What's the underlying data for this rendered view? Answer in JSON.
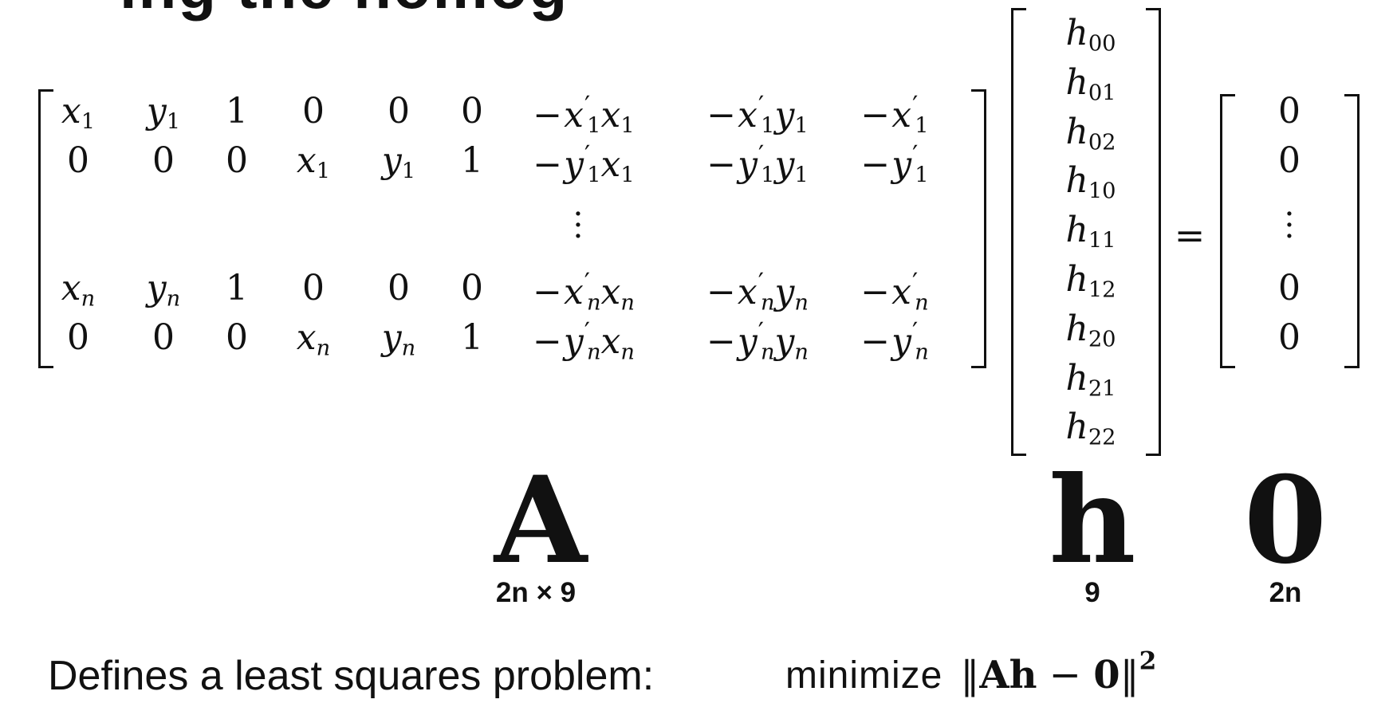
{
  "title_fragment": "ing  the  homog",
  "matrix_A": {
    "rows": [
      [
        {
          "t": [
            [
              "v",
              "x"
            ],
            [
              "sub",
              "1"
            ]
          ]
        },
        {
          "t": [
            [
              "v",
              "y"
            ],
            [
              "sub",
              "1"
            ]
          ]
        },
        {
          "t": [
            [
              "n",
              "1"
            ]
          ]
        },
        {
          "t": [
            [
              "n",
              "0"
            ]
          ]
        },
        {
          "t": [
            [
              "n",
              "0"
            ]
          ]
        },
        {
          "t": [
            [
              "n",
              "0"
            ]
          ]
        },
        {
          "t": [
            [
              "m",
              "−"
            ],
            [
              "v",
              "x"
            ],
            [
              "p",
              "′"
            ],
            [
              "sub",
              "1"
            ],
            [
              "v",
              "x"
            ],
            [
              "sub",
              "1"
            ]
          ]
        },
        {
          "t": [
            [
              "m",
              "−"
            ],
            [
              "v",
              "x"
            ],
            [
              "p",
              "′"
            ],
            [
              "sub",
              "1"
            ],
            [
              "v",
              "y"
            ],
            [
              "sub",
              "1"
            ]
          ]
        },
        {
          "t": [
            [
              "m",
              "−"
            ],
            [
              "v",
              "x"
            ],
            [
              "p",
              "′"
            ],
            [
              "sub",
              "1"
            ]
          ]
        }
      ],
      [
        {
          "t": [
            [
              "n",
              "0"
            ]
          ]
        },
        {
          "t": [
            [
              "n",
              "0"
            ]
          ]
        },
        {
          "t": [
            [
              "n",
              "0"
            ]
          ]
        },
        {
          "t": [
            [
              "v",
              "x"
            ],
            [
              "sub",
              "1"
            ]
          ]
        },
        {
          "t": [
            [
              "v",
              "y"
            ],
            [
              "sub",
              "1"
            ]
          ]
        },
        {
          "t": [
            [
              "n",
              "1"
            ]
          ]
        },
        {
          "t": [
            [
              "m",
              "−"
            ],
            [
              "v",
              "y"
            ],
            [
              "p",
              "′"
            ],
            [
              "sub",
              "1"
            ],
            [
              "v",
              "x"
            ],
            [
              "sub",
              "1"
            ]
          ]
        },
        {
          "t": [
            [
              "m",
              "−"
            ],
            [
              "v",
              "y"
            ],
            [
              "p",
              "′"
            ],
            [
              "sub",
              "1"
            ],
            [
              "v",
              "y"
            ],
            [
              "sub",
              "1"
            ]
          ]
        },
        {
          "t": [
            [
              "m",
              "−"
            ],
            [
              "v",
              "y"
            ],
            [
              "p",
              "′"
            ],
            [
              "sub",
              "1"
            ]
          ]
        }
      ],
      [
        {
          "t": [
            [
              "v",
              "x"
            ],
            [
              "subv",
              "n"
            ]
          ]
        },
        {
          "t": [
            [
              "v",
              "y"
            ],
            [
              "subv",
              "n"
            ]
          ]
        },
        {
          "t": [
            [
              "n",
              "1"
            ]
          ]
        },
        {
          "t": [
            [
              "n",
              "0"
            ]
          ]
        },
        {
          "t": [
            [
              "n",
              "0"
            ]
          ]
        },
        {
          "t": [
            [
              "n",
              "0"
            ]
          ]
        },
        {
          "t": [
            [
              "m",
              "−"
            ],
            [
              "v",
              "x"
            ],
            [
              "p",
              "′"
            ],
            [
              "subv",
              "n"
            ],
            [
              "v",
              "x"
            ],
            [
              "subv",
              "n"
            ]
          ]
        },
        {
          "t": [
            [
              "m",
              "−"
            ],
            [
              "v",
              "x"
            ],
            [
              "p",
              "′"
            ],
            [
              "subv",
              "n"
            ],
            [
              "v",
              "y"
            ],
            [
              "subv",
              "n"
            ]
          ]
        },
        {
          "t": [
            [
              "m",
              "−"
            ],
            [
              "v",
              "x"
            ],
            [
              "p",
              "′"
            ],
            [
              "subv",
              "n"
            ]
          ]
        }
      ],
      [
        {
          "t": [
            [
              "n",
              "0"
            ]
          ]
        },
        {
          "t": [
            [
              "n",
              "0"
            ]
          ]
        },
        {
          "t": [
            [
              "n",
              "0"
            ]
          ]
        },
        {
          "t": [
            [
              "v",
              "x"
            ],
            [
              "subv",
              "n"
            ]
          ]
        },
        {
          "t": [
            [
              "v",
              "y"
            ],
            [
              "subv",
              "n"
            ]
          ]
        },
        {
          "t": [
            [
              "n",
              "1"
            ]
          ]
        },
        {
          "t": [
            [
              "m",
              "−"
            ],
            [
              "v",
              "y"
            ],
            [
              "p",
              "′"
            ],
            [
              "subv",
              "n"
            ],
            [
              "v",
              "x"
            ],
            [
              "subv",
              "n"
            ]
          ]
        },
        {
          "t": [
            [
              "m",
              "−"
            ],
            [
              "v",
              "y"
            ],
            [
              "p",
              "′"
            ],
            [
              "subv",
              "n"
            ],
            [
              "v",
              "y"
            ],
            [
              "subv",
              "n"
            ]
          ]
        },
        {
          "t": [
            [
              "m",
              "−"
            ],
            [
              "v",
              "y"
            ],
            [
              "p",
              "′"
            ],
            [
              "subv",
              "n"
            ]
          ]
        }
      ]
    ]
  },
  "vector_h": [
    {
      "base": "h",
      "sub": "00"
    },
    {
      "base": "h",
      "sub": "01"
    },
    {
      "base": "h",
      "sub": "02"
    },
    {
      "base": "h",
      "sub": "10"
    },
    {
      "base": "h",
      "sub": "11"
    },
    {
      "base": "h",
      "sub": "12"
    },
    {
      "base": "h",
      "sub": "20"
    },
    {
      "base": "h",
      "sub": "21"
    },
    {
      "base": "h",
      "sub": "22"
    }
  ],
  "equals_sign": "=",
  "vector_zero": [
    "0",
    "0",
    "0",
    "0"
  ],
  "symbols": {
    "A": {
      "symbol": "A",
      "dims": "2n × 9"
    },
    "h": {
      "symbol": "h",
      "dims": "9"
    },
    "zero": {
      "symbol": "0",
      "dims": "2n"
    }
  },
  "caption": "Defines a least squares problem:",
  "objective": {
    "word": "minimize",
    "norm_open": "‖",
    "A": "A",
    "h": "h",
    "minus": " − ",
    "zero": "0",
    "norm_close": "‖",
    "power": "2"
  }
}
